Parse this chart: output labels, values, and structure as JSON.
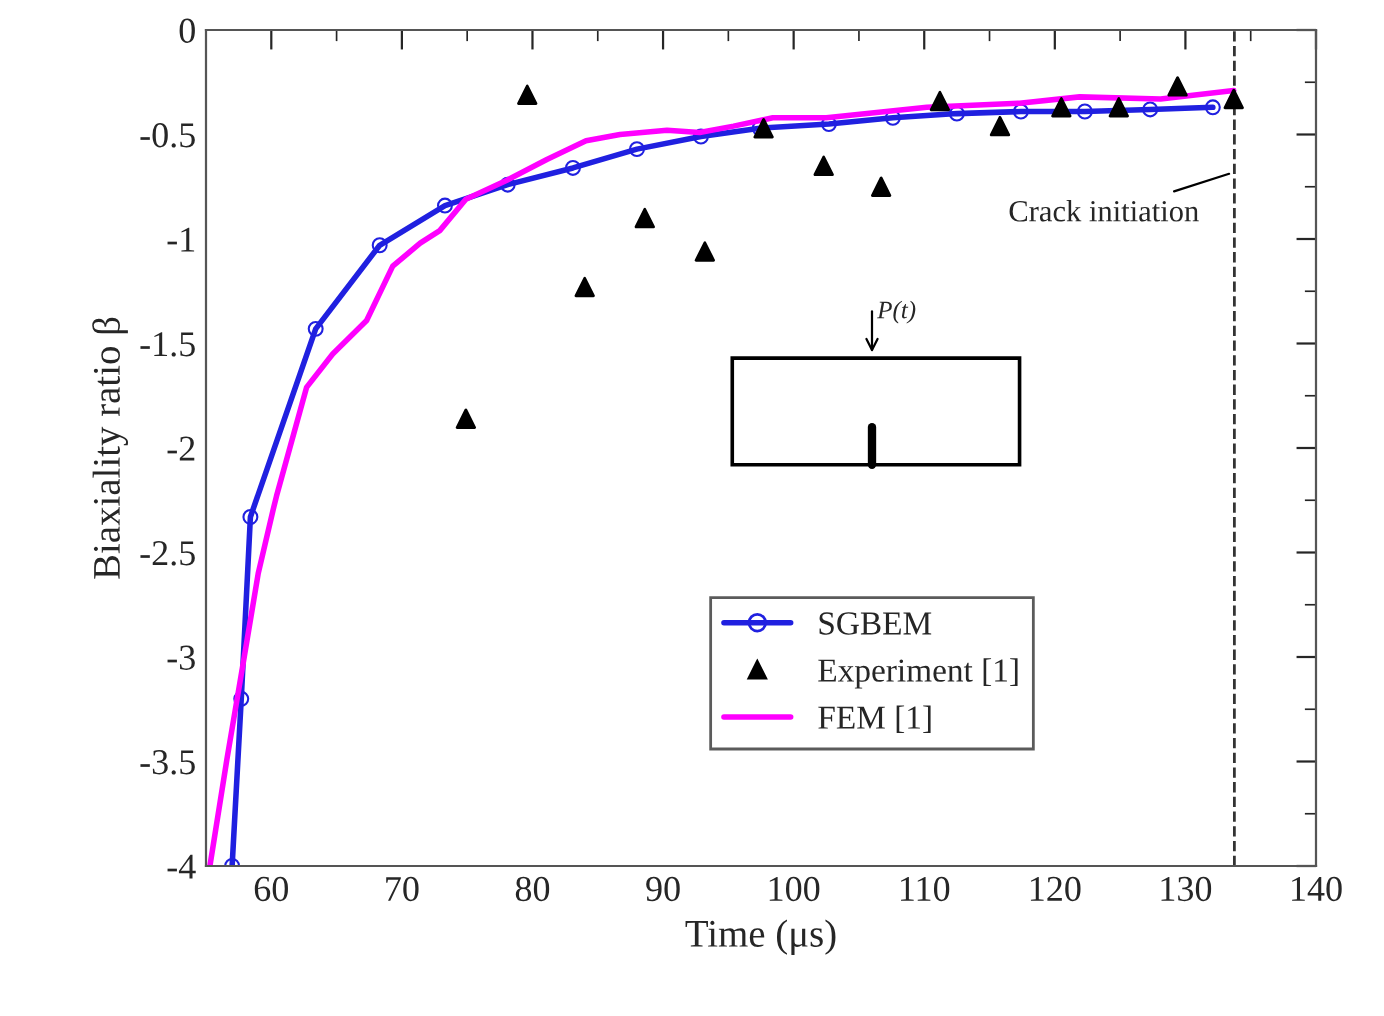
{
  "chart_data": {
    "type": "line",
    "xlabel": "Time (μs)",
    "ylabel": "Biaxiality ratio β",
    "xlim": [
      55,
      140
    ],
    "xticks": [
      60,
      70,
      80,
      90,
      100,
      110,
      120,
      130,
      140
    ],
    "ylim": [
      -4,
      0
    ],
    "yticks": [
      -4,
      -3.5,
      -3,
      -2.5,
      -2,
      -1.5,
      -1,
      -0.5,
      0
    ],
    "legend": "bottom",
    "grid": false,
    "series": [
      {
        "name": "SGBEM",
        "marker": "circle",
        "color": "#2020e0",
        "x": [
          57.0,
          57.7,
          58.4,
          63.4,
          68.3,
          73.3,
          78.1,
          83.1,
          88.0,
          92.9,
          97.4,
          102.7,
          107.6,
          112.5,
          117.4,
          122.3,
          127.3,
          132.1
        ],
        "values": [
          -4,
          -3.2,
          -2.33,
          -1.43,
          -1.03,
          -0.84,
          -0.74,
          -0.66,
          -0.57,
          -0.51,
          -0.47,
          -0.45,
          -0.42,
          -0.4,
          -0.39,
          -0.39,
          -0.38,
          -0.37
        ]
      },
      {
        "name": "Experiment [1]",
        "type": "scatter",
        "marker": "triangle",
        "color": "#000000",
        "x": [
          74.9,
          79.6,
          84.0,
          88.6,
          93.2,
          97.7,
          102.3,
          106.7,
          111.2,
          115.8,
          120.5,
          124.9,
          129.4,
          133.7
        ],
        "values": [
          -1.86,
          -0.31,
          -1.23,
          -0.9,
          -1.06,
          -0.47,
          -0.65,
          -0.75,
          -0.34,
          -0.46,
          -0.37,
          -0.37,
          -0.27,
          -0.33
        ]
      },
      {
        "name": "FEM [1]",
        "marker": "none",
        "color": "#ff00ff",
        "x": [
          55.3,
          56.6,
          57.9,
          59.0,
          60.2,
          60.4,
          62.7,
          64.7,
          67.3,
          69.3,
          71.4,
          72.9,
          74.9,
          78.0,
          81.1,
          84.1,
          86.7,
          90.3,
          92.8,
          95.4,
          98.4,
          102.5,
          110.2,
          117.3,
          121.9,
          128.1,
          133.7
        ],
        "values": [
          -4,
          -3.49,
          -3.01,
          -2.6,
          -2.28,
          -2.23,
          -1.71,
          -1.55,
          -1.39,
          -1.13,
          -1.02,
          -0.96,
          -0.81,
          -0.72,
          -0.62,
          -0.53,
          -0.5,
          -0.48,
          -0.49,
          -0.46,
          -0.42,
          -0.42,
          -0.37,
          -0.35,
          -0.32,
          -0.33,
          -0.29
        ]
      }
    ],
    "ref_lines": [
      {
        "axis": "x",
        "value": 133.75,
        "line_style": "dashed",
        "color": "#333333"
      }
    ],
    "annotations": [
      {
        "text": "Crack initiation",
        "x": 133.75,
        "y": -0.68
      },
      "P(t)"
    ]
  }
}
